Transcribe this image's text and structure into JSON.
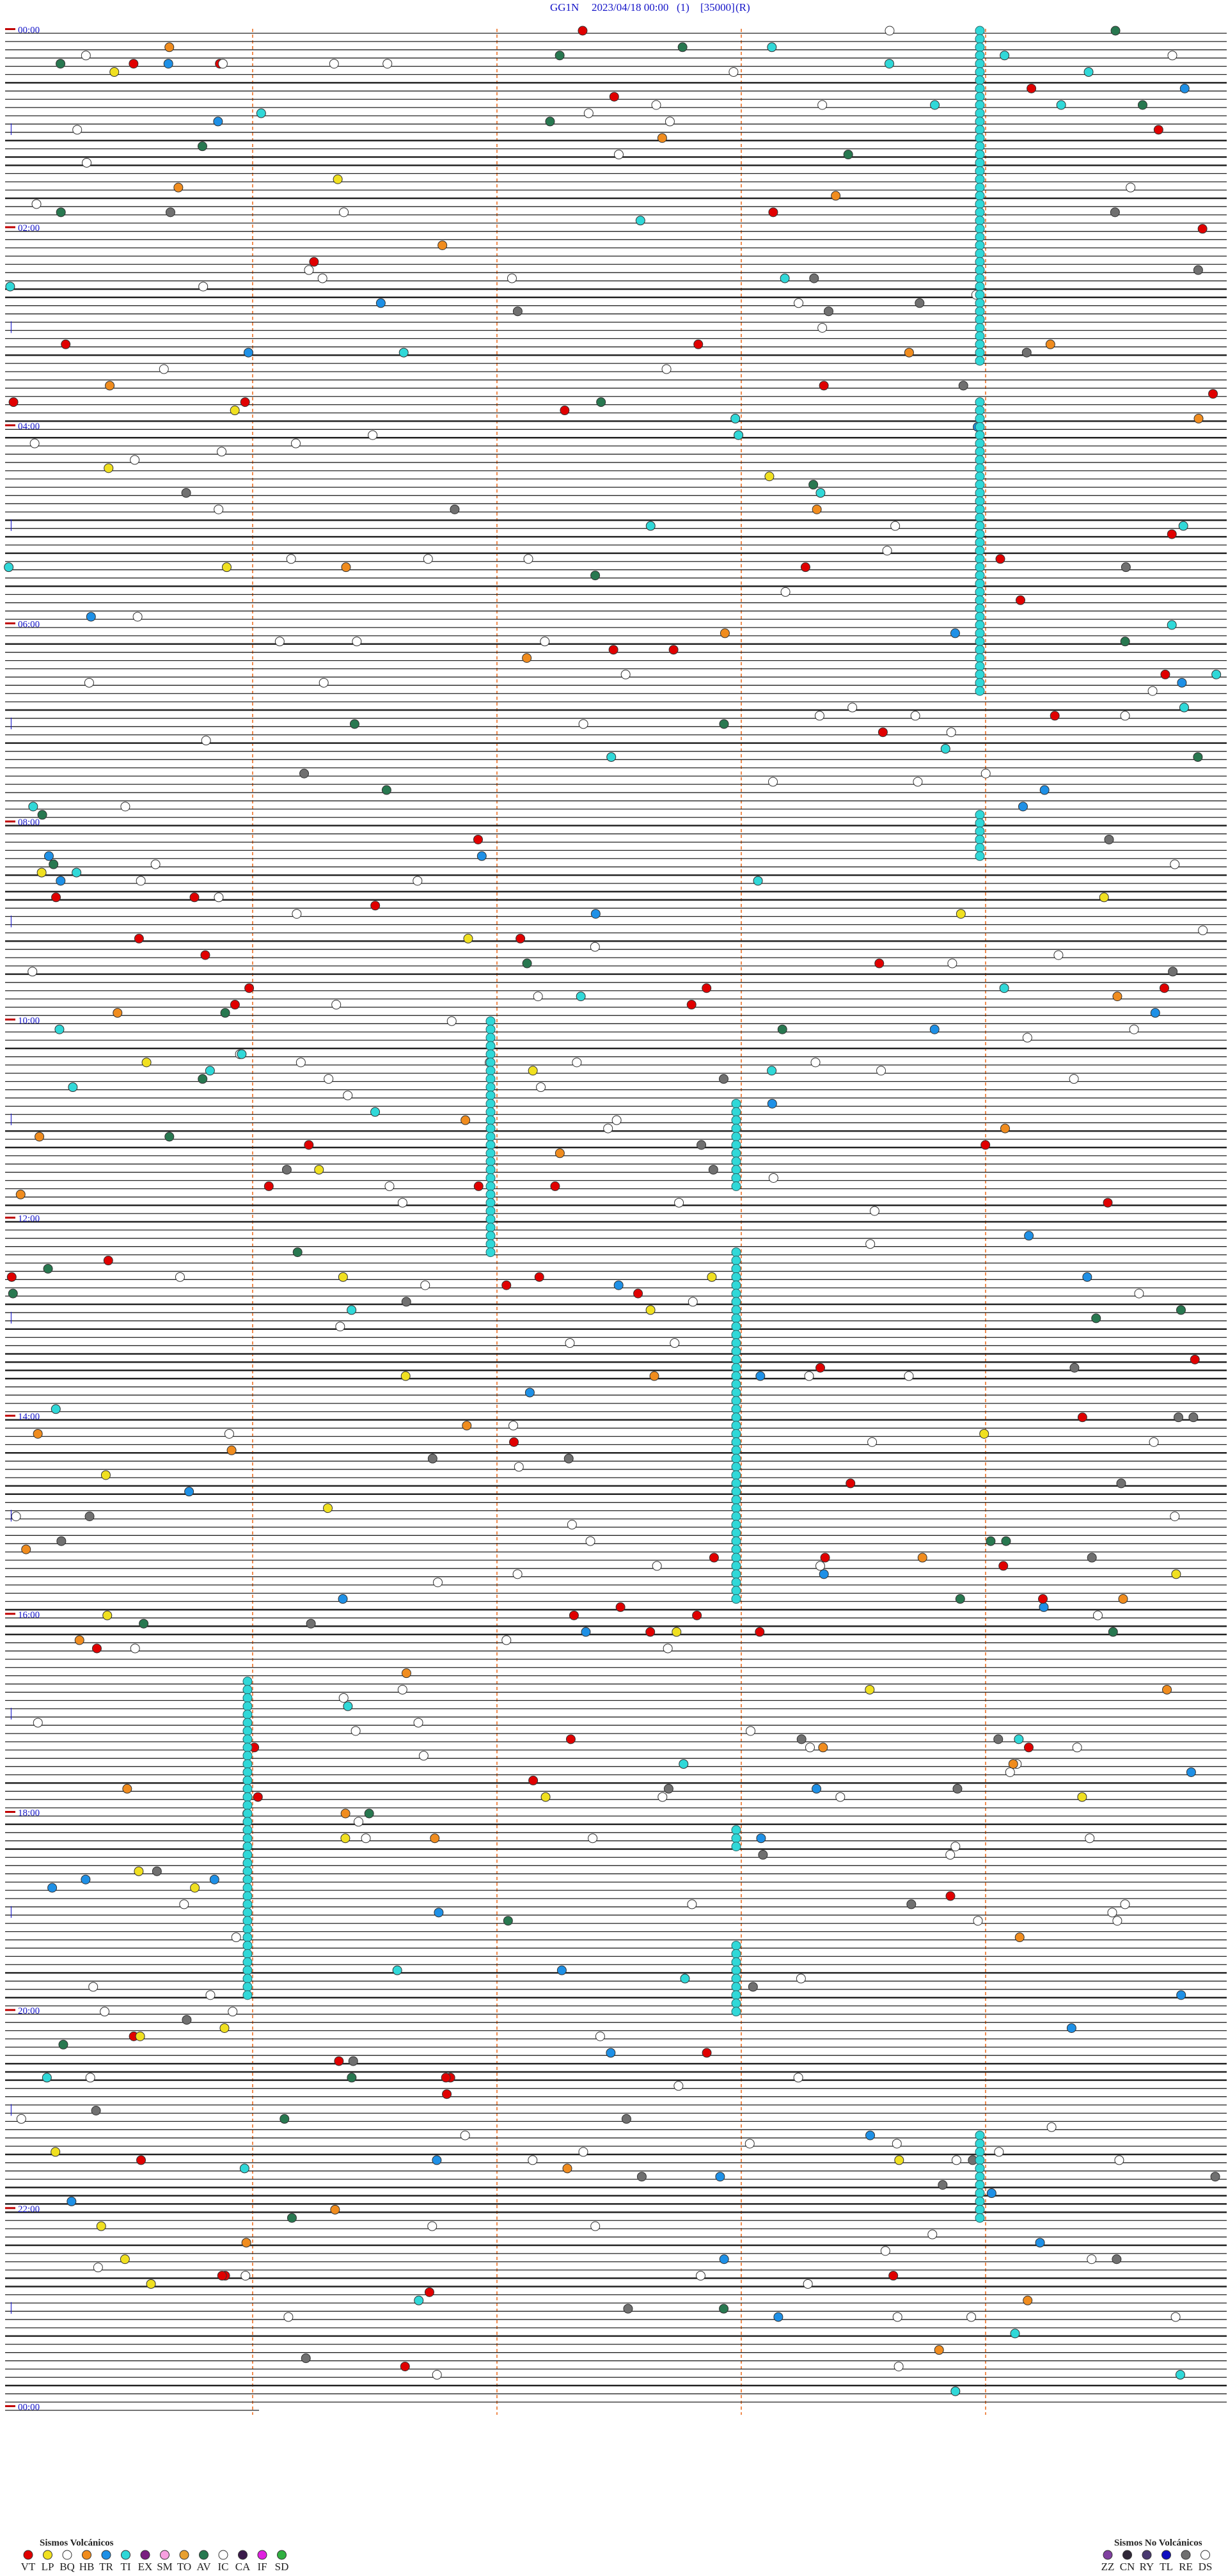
{
  "header": {
    "station": "GG1N",
    "datetime": "2023/04/18 00:00",
    "channel": "(1)",
    "scale": "[35000]",
    "mode": "(R)"
  },
  "time_labels": [
    "00:00",
    "02:00",
    "04:00",
    "06:00",
    "08:00",
    "10:00",
    "12:00",
    "14:00",
    "16:00",
    "18:00",
    "20:00",
    "22:00",
    "00:00"
  ],
  "legend": {
    "volcanic": {
      "title": "Sismos Volcánicos",
      "items": [
        {
          "code": "VT",
          "color": "#e00000"
        },
        {
          "code": "LP",
          "color": "#f0e020"
        },
        {
          "code": "BQ",
          "color": "#ffffff"
        },
        {
          "code": "HB",
          "color": "#f08c1e"
        },
        {
          "code": "TR",
          "color": "#1e90e6"
        },
        {
          "code": "TI",
          "color": "#30d8d8"
        },
        {
          "code": "EX",
          "color": "#7a2080"
        },
        {
          "code": "SM",
          "color": "#f7a0e0"
        },
        {
          "code": "TO",
          "color": "#e8a030"
        },
        {
          "code": "AV",
          "color": "#287850"
        },
        {
          "code": "IC",
          "color": "#ffffff"
        },
        {
          "code": "CA",
          "color": "#3a1a4a"
        },
        {
          "code": "IF",
          "color": "#e020e0"
        },
        {
          "code": "SD",
          "color": "#30b040"
        }
      ]
    },
    "non_volcanic": {
      "title": "Sismos No Volcánicos",
      "items": [
        {
          "code": "ZZ",
          "color": "#8040a0"
        },
        {
          "code": "CN",
          "color": "#302838"
        },
        {
          "code": "RY",
          "color": "#4a3a70"
        },
        {
          "code": "TL",
          "color": "#1010c0"
        },
        {
          "code": "RE",
          "color": "#707070"
        },
        {
          "code": "DS",
          "color": "#ffffff"
        }
      ]
    }
  }
}
